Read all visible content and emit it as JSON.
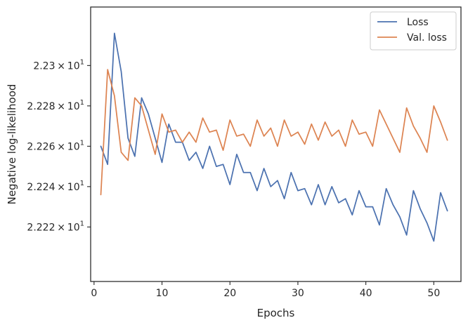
{
  "chart_data": {
    "type": "line",
    "xlabel": "Epochs",
    "ylabel": "Negative log-likelihood",
    "xlim": [
      -0.5,
      54
    ],
    "ylim": [
      22.2193,
      22.2329
    ],
    "y_scale": "log",
    "grid": false,
    "legend_position": "top-right",
    "x_ticks": [
      {
        "value": 0,
        "label": "0"
      },
      {
        "value": 10,
        "label": "10"
      },
      {
        "value": 20,
        "label": "20"
      },
      {
        "value": 30,
        "label": "30"
      },
      {
        "value": 40,
        "label": "40"
      },
      {
        "value": 50,
        "label": "50"
      }
    ],
    "y_ticks": [
      {
        "value": 22.222,
        "base": "2.222",
        "exp": "1"
      },
      {
        "value": 22.224,
        "base": "2.224",
        "exp": "1"
      },
      {
        "value": 22.226,
        "base": "2.226",
        "exp": "1"
      },
      {
        "value": 22.228,
        "base": "2.228",
        "exp": "1"
      },
      {
        "value": 22.23,
        "base": "2.23",
        "exp": "1"
      }
    ],
    "x": [
      1,
      2,
      3,
      4,
      5,
      6,
      7,
      8,
      9,
      10,
      11,
      12,
      13,
      14,
      15,
      16,
      17,
      18,
      19,
      20,
      21,
      22,
      23,
      24,
      25,
      26,
      27,
      28,
      29,
      30,
      31,
      32,
      33,
      34,
      35,
      36,
      37,
      38,
      39,
      40,
      41,
      42,
      43,
      44,
      45,
      46,
      47,
      48,
      49,
      50,
      51,
      52
    ],
    "series": [
      {
        "name": "Loss",
        "color": "#4c72b0",
        "values": [
          22.226,
          22.2251,
          22.2316,
          22.2297,
          22.2264,
          22.2255,
          22.2284,
          22.2276,
          22.2264,
          22.2252,
          22.2271,
          22.2262,
          22.2262,
          22.2253,
          22.2257,
          22.2249,
          22.226,
          22.225,
          22.2251,
          22.2241,
          22.2256,
          22.2247,
          22.2247,
          22.2238,
          22.2249,
          22.224,
          22.2243,
          22.2234,
          22.2247,
          22.2238,
          22.2239,
          22.2231,
          22.2241,
          22.2231,
          22.224,
          22.2232,
          22.2234,
          22.2226,
          22.2238,
          22.223,
          22.223,
          22.2221,
          22.2239,
          22.2231,
          22.2225,
          22.2216,
          22.2238,
          22.2229,
          22.2222,
          22.2213,
          22.2237,
          22.2228
        ]
      },
      {
        "name": "Val. loss",
        "color": "#dd8452",
        "values": [
          22.2236,
          22.2298,
          22.2285,
          22.2257,
          22.2253,
          22.2284,
          22.228,
          22.2268,
          22.2256,
          22.2276,
          22.2267,
          22.2268,
          22.2262,
          22.2267,
          22.2262,
          22.2274,
          22.2267,
          22.2268,
          22.2258,
          22.2273,
          22.2265,
          22.2266,
          22.226,
          22.2273,
          22.2265,
          22.2269,
          22.226,
          22.2273,
          22.2265,
          22.2267,
          22.2261,
          22.2271,
          22.2263,
          22.2272,
          22.2265,
          22.2268,
          22.226,
          22.2273,
          22.2266,
          22.2267,
          22.226,
          22.2278,
          22.2271,
          22.2264,
          22.2257,
          22.2279,
          22.227,
          22.2264,
          22.2257,
          22.228,
          22.2272,
          22.2263
        ]
      }
    ]
  }
}
